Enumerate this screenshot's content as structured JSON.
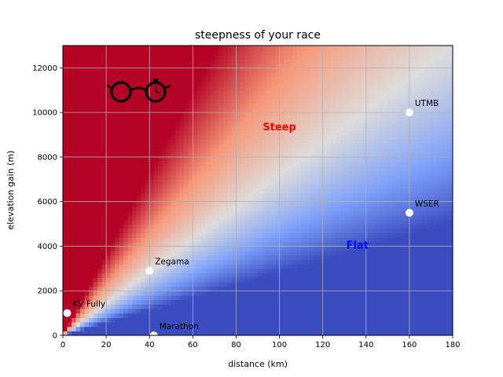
{
  "chart_data": {
    "type": "heatmap",
    "title": "steepness of your race",
    "xlabel": "distance (km)",
    "ylabel": "elevation gain (m)",
    "xlim": [
      0,
      180
    ],
    "ylim": [
      0,
      13000
    ],
    "xticks": [
      0,
      20,
      40,
      60,
      80,
      100,
      120,
      140,
      160,
      180
    ],
    "yticks": [
      0,
      2000,
      4000,
      6000,
      8000,
      10000,
      12000
    ],
    "grid": true,
    "colormap": "coolwarm",
    "colors": {
      "steep": "#b40426",
      "mid": "#dddcdc",
      "flat": "#3b4cc0"
    },
    "regions": [
      {
        "label": "Steep",
        "x": 100,
        "y": 9200,
        "color": "#ff0000"
      },
      {
        "label": "Flat",
        "x": 136,
        "y": 3900,
        "color": "#0000ff"
      }
    ],
    "points": [
      {
        "label": "KV Fully",
        "x": 2,
        "y": 1000
      },
      {
        "label": "Marathon",
        "x": 42,
        "y": 0
      },
      {
        "label": "Zegama",
        "x": 40,
        "y": 2900
      },
      {
        "label": "WSER",
        "x": 160,
        "y": 5500
      },
      {
        "label": "UTMB",
        "x": 160,
        "y": 10000
      }
    ],
    "logo": "glasses-stopwatch-icon"
  }
}
